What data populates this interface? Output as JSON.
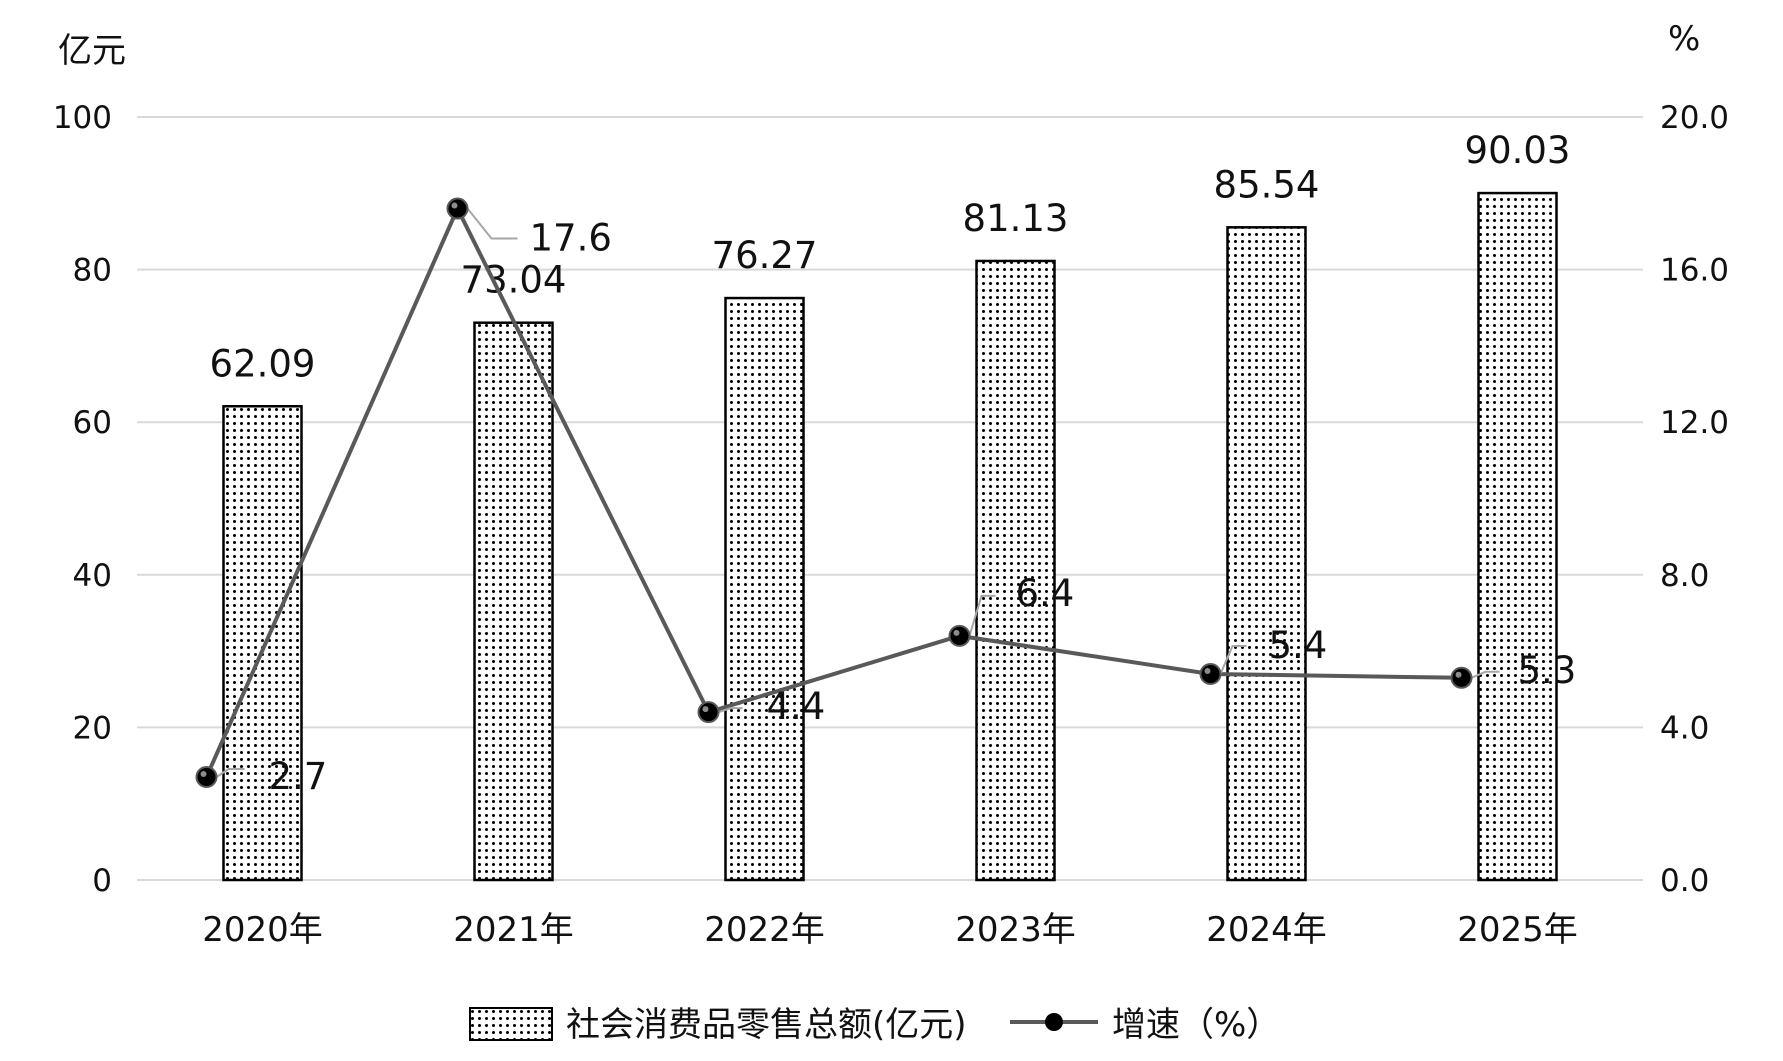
{
  "chart_data": {
    "type": "bar",
    "categories": [
      "2020年",
      "2021年",
      "2022年",
      "2023年",
      "2024年",
      "2025年"
    ],
    "series": [
      {
        "name": "社会消费品零售总额(亿元)",
        "type": "bar",
        "axis": "left",
        "values": [
          62.09,
          73.04,
          76.27,
          81.13,
          85.54,
          90.03
        ],
        "labels": [
          "62.09",
          "73.04",
          "76.27",
          "81.13",
          "85.54",
          "90.03"
        ]
      },
      {
        "name": "增速（%）",
        "type": "line",
        "axis": "right",
        "values": [
          2.7,
          17.6,
          4.4,
          6.4,
          5.4,
          5.3
        ],
        "labels": [
          "2.7",
          "17.6",
          "4.4",
          "6.4",
          "5.4",
          "5.3"
        ]
      }
    ],
    "left_axis": {
      "unit": "亿元",
      "ylim": [
        0,
        100
      ],
      "ticks": [
        "0",
        "20",
        "40",
        "60",
        "80",
        "100"
      ],
      "tick_values": [
        0,
        20,
        40,
        60,
        80,
        100
      ]
    },
    "right_axis": {
      "unit": "%",
      "ylim": [
        0,
        20
      ],
      "ticks": [
        "0.0",
        "4.0",
        "8.0",
        "12.0",
        "16.0",
        "20.0"
      ],
      "tick_values": [
        0,
        4,
        8,
        12,
        16,
        20
      ]
    },
    "grid": true,
    "legend": "bottom",
    "colors": {
      "bar_fill": "#ffffff",
      "bar_dots": "#000000",
      "line": "#595959",
      "marker": "#000000",
      "grid": "#d9d9d9"
    }
  }
}
